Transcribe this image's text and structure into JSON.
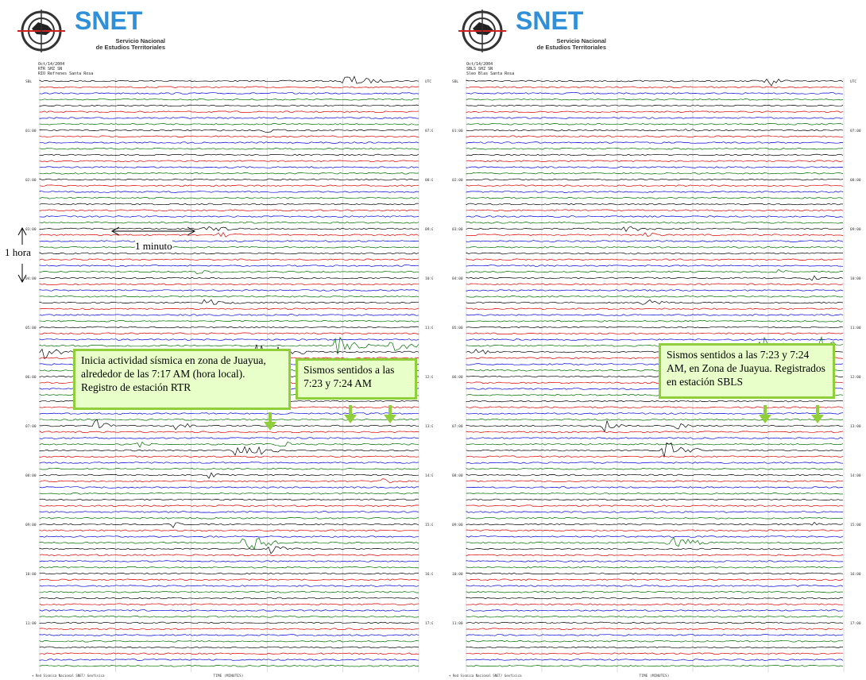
{
  "panels": [
    {
      "id": "left",
      "logo": {
        "title": "SNET",
        "subtitle_line1": "Servicio Nacional",
        "subtitle_line2": "de Estudios Territoriales"
      },
      "header": {
        "line1": "Oct/14/2004",
        "line2": "RTR SHZ SN",
        "line3": "RIO Refrenes Santa Rosa"
      },
      "callouts": [
        {
          "text": "Inicia actividad sísmica en zona de Juayua, alrededor de las 7:17 AM (hora local). Registro de estación RTR"
        },
        {
          "text": "Sismos sentidos a las 7:23 y 7:24 AM"
        }
      ],
      "annotations": {
        "minute": "1 minuto",
        "hour": "1 hora"
      }
    },
    {
      "id": "right",
      "logo": {
        "title": "SNET",
        "subtitle_line1": "Servicio Nacional",
        "subtitle_line2": "de Estudios Territoriales"
      },
      "header": {
        "line1": "Oct/14/2004",
        "line2": "SBLS SHZ SN",
        "line3": "Sleo Blas Santa Rosa"
      },
      "callouts": [
        {
          "text": "Sismos sentidos a las 7:23 y 7:24 AM, en Zona de Juayua. Registrados en estación SBLS"
        }
      ]
    }
  ],
  "helicorder": {
    "trace_colors": [
      "#000000",
      "#e00000",
      "#0000e0",
      "#007000"
    ],
    "left_hour_labels": [
      "SBL",
      "01:00",
      "02:00",
      "03:00",
      "04:00",
      "05:00",
      "06:00",
      "07:00",
      "08:00",
      "09:00",
      "10:00",
      "11:00"
    ],
    "right_hour_labels": [
      "UTC",
      "07:00",
      "08:00",
      "09:00",
      "10:00",
      "11:00",
      "12:00",
      "13:00",
      "14:00",
      "15:00",
      "16:00",
      "17:00"
    ],
    "time_axis_label": "TIME (MINUTES)",
    "footer_text": "+ Red Sismica Nacional   SNET/ Geofisica"
  }
}
